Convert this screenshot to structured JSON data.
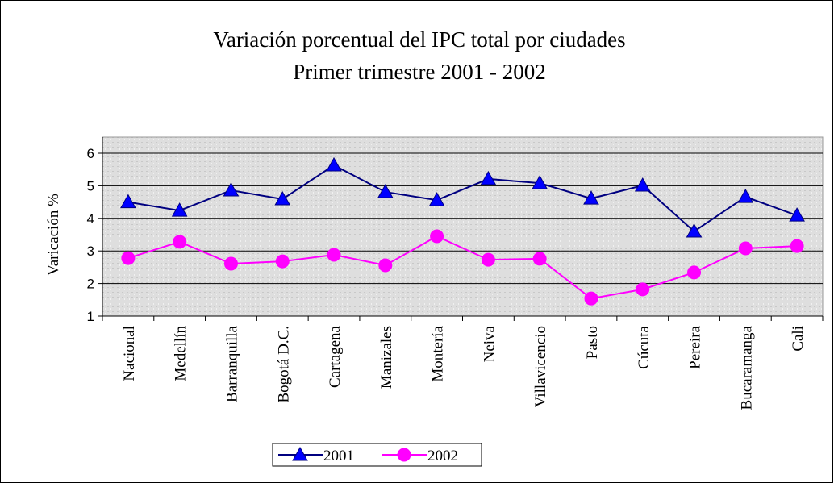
{
  "chart_data": {
    "type": "line",
    "title": "Variación porcentual  del IPC total por ciudades",
    "subtitle": "Primer trimestre 2001 - 2002",
    "y_label": "Varicación %",
    "categories": [
      "Nacional",
      "Medellín",
      "Barranquilla",
      "Bogotá D.C.",
      "Cartagena",
      "Manizales",
      "Montería",
      "Neiva",
      "Villavicencio",
      "Pasto",
      "Cúcuta",
      "Pereira",
      "Bucaramanga",
      "Cali"
    ],
    "series": [
      {
        "name": "2001",
        "color": "#000080",
        "marker_color": "#0000ff",
        "marker": "triangle",
        "values": [
          4.5,
          4.24,
          4.86,
          4.59,
          5.63,
          4.81,
          4.56,
          5.21,
          5.08,
          4.61,
          5.01,
          3.6,
          4.66,
          4.09
        ]
      },
      {
        "name": "2002",
        "color": "#ff00ff",
        "marker_color": "#ff00ff",
        "marker": "circle",
        "values": [
          2.78,
          3.28,
          2.61,
          2.68,
          2.88,
          2.56,
          3.45,
          2.73,
          2.76,
          1.54,
          1.82,
          2.34,
          3.08,
          3.15
        ]
      }
    ],
    "ylim": [
      1,
      6
    ],
    "yticks": [
      1,
      2,
      3,
      4,
      5,
      6
    ],
    "grid": true,
    "legend": "bottom"
  }
}
